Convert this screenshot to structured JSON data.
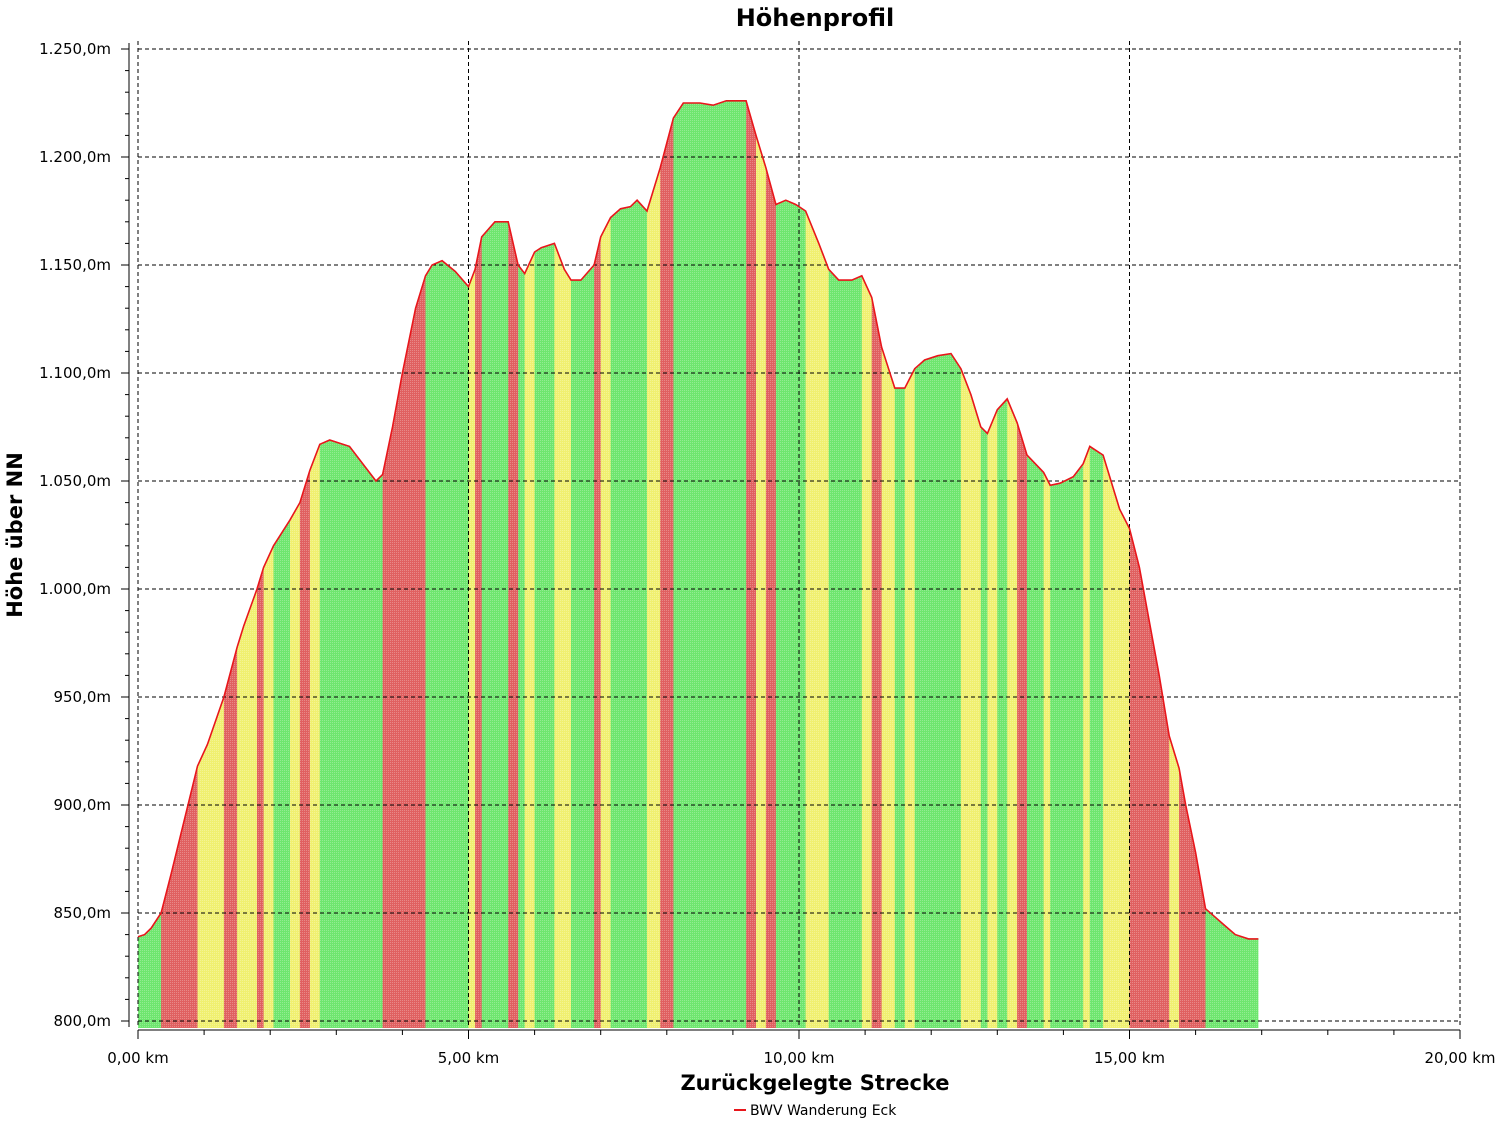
{
  "chart_data": {
    "type": "area",
    "title": "Höhenprofil",
    "xlabel": "Zurückgelegte Strecke",
    "ylabel": "Höhe über NN",
    "xlim": [
      0,
      20
    ],
    "ylim": [
      800,
      1250
    ],
    "x_ticks": [
      0,
      5,
      10,
      15,
      20
    ],
    "x_tick_labels": [
      "0,00 km",
      "5,00 km",
      "10,00 km",
      "15,00 km",
      "20,00 km"
    ],
    "y_ticks": [
      800,
      850,
      900,
      950,
      1000,
      1050,
      1100,
      1150,
      1200,
      1250
    ],
    "y_tick_labels": [
      "800,0m",
      "850,0m",
      "900,0m",
      "950,0m",
      "1.000,0m",
      "1.050,0m",
      "1.100,0m",
      "1.150,0m",
      "1.200,0m",
      "1.250,0m"
    ],
    "grid": true,
    "legend_position": "bottom-center",
    "colors": {
      "line": "#e8161b",
      "steep": "#e06060",
      "medium": "#f0f070",
      "flat": "#6ee66e"
    },
    "series": [
      {
        "name": "BWV Wanderung Eck",
        "x": [
          0,
          0.1,
          0.2,
          0.35,
          0.5,
          0.7,
          0.9,
          1.05,
          1.3,
          1.5,
          1.6,
          1.8,
          1.9,
          2.05,
          2.3,
          2.45,
          2.6,
          2.75,
          2.9,
          3.2,
          3.45,
          3.6,
          3.7,
          3.85,
          4.0,
          4.2,
          4.35,
          4.45,
          4.6,
          4.8,
          5.0,
          5.1,
          5.2,
          5.4,
          5.6,
          5.75,
          5.85,
          6.0,
          6.1,
          6.3,
          6.45,
          6.55,
          6.7,
          6.9,
          7.0,
          7.15,
          7.3,
          7.45,
          7.55,
          7.7,
          7.9,
          8.1,
          8.25,
          8.5,
          8.7,
          8.9,
          9.05,
          9.2,
          9.35,
          9.5,
          9.65,
          9.8,
          9.95,
          10.1,
          10.3,
          10.45,
          10.6,
          10.8,
          10.95,
          11.1,
          11.25,
          11.45,
          11.6,
          11.75,
          11.9,
          12.1,
          12.3,
          12.45,
          12.6,
          12.75,
          12.85,
          13.0,
          13.15,
          13.3,
          13.45,
          13.7,
          13.8,
          13.95,
          14.15,
          14.3,
          14.4,
          14.6,
          14.85,
          15.0,
          15.15,
          15.3,
          15.45,
          15.6,
          15.75,
          15.85,
          16.0,
          16.15,
          16.3,
          16.45,
          16.6,
          16.8,
          16.95
        ],
        "y": [
          839,
          840,
          843,
          850,
          868,
          893,
          918,
          928,
          950,
          973,
          983,
          1000,
          1010,
          1020,
          1032,
          1040,
          1055,
          1067,
          1069,
          1066,
          1056,
          1050,
          1053,
          1075,
          1100,
          1130,
          1145,
          1150,
          1152,
          1147,
          1140,
          1148,
          1163,
          1170,
          1170,
          1150,
          1146,
          1156,
          1158,
          1160,
          1148,
          1143,
          1143,
          1150,
          1163,
          1172,
          1176,
          1177,
          1180,
          1175,
          1195,
          1218,
          1225,
          1225,
          1224,
          1226,
          1226,
          1226,
          1210,
          1195,
          1178,
          1180,
          1178,
          1175,
          1160,
          1148,
          1143,
          1143,
          1145,
          1135,
          1112,
          1093,
          1093,
          1102,
          1106,
          1108,
          1109,
          1102,
          1090,
          1075,
          1072,
          1083,
          1088,
          1077,
          1062,
          1054,
          1048,
          1049,
          1052,
          1058,
          1066,
          1062,
          1037,
          1028,
          1010,
          985,
          960,
          932,
          917,
          900,
          878,
          852,
          848,
          844,
          840,
          838,
          838
        ]
      }
    ]
  },
  "legend": {
    "label": "BWV Wanderung Eck"
  }
}
